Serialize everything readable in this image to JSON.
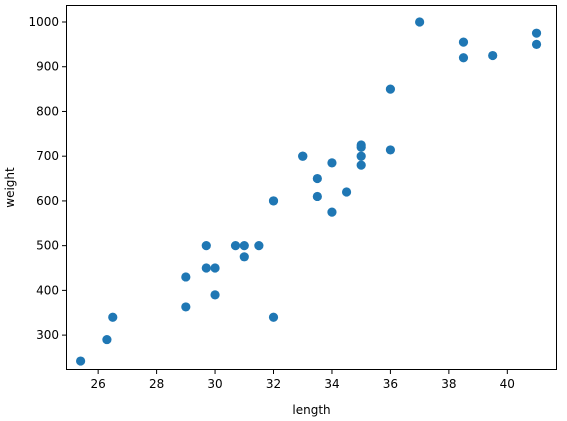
{
  "chart_data": {
    "type": "scatter",
    "title": "",
    "xlabel": "length",
    "ylabel": "weight",
    "xlim": [
      24.9,
      41.7
    ],
    "ylim": [
      222,
      1038
    ],
    "xticks": [
      26,
      28,
      30,
      32,
      34,
      36,
      38,
      40
    ],
    "yticks": [
      300,
      400,
      500,
      600,
      700,
      800,
      900,
      1000
    ],
    "grid": false,
    "marker_color": "#1f77b4",
    "points": [
      {
        "x": 25.4,
        "y": 242
      },
      {
        "x": 26.3,
        "y": 290
      },
      {
        "x": 26.5,
        "y": 340
      },
      {
        "x": 29.0,
        "y": 363
      },
      {
        "x": 29.0,
        "y": 430
      },
      {
        "x": 29.7,
        "y": 450
      },
      {
        "x": 29.7,
        "y": 500
      },
      {
        "x": 30.0,
        "y": 390
      },
      {
        "x": 30.0,
        "y": 450
      },
      {
        "x": 30.7,
        "y": 500
      },
      {
        "x": 31.0,
        "y": 475
      },
      {
        "x": 31.0,
        "y": 500
      },
      {
        "x": 31.5,
        "y": 500
      },
      {
        "x": 32.0,
        "y": 340
      },
      {
        "x": 32.0,
        "y": 600
      },
      {
        "x": 32.0,
        "y": 600
      },
      {
        "x": 33.0,
        "y": 700
      },
      {
        "x": 33.0,
        "y": 700
      },
      {
        "x": 33.5,
        "y": 610
      },
      {
        "x": 33.5,
        "y": 650
      },
      {
        "x": 34.0,
        "y": 575
      },
      {
        "x": 34.0,
        "y": 685
      },
      {
        "x": 34.5,
        "y": 620
      },
      {
        "x": 35.0,
        "y": 680
      },
      {
        "x": 35.0,
        "y": 700
      },
      {
        "x": 35.0,
        "y": 725
      },
      {
        "x": 35.0,
        "y": 720
      },
      {
        "x": 36.0,
        "y": 714
      },
      {
        "x": 36.0,
        "y": 850
      },
      {
        "x": 37.0,
        "y": 1000
      },
      {
        "x": 38.5,
        "y": 920
      },
      {
        "x": 38.5,
        "y": 955
      },
      {
        "x": 39.5,
        "y": 925
      },
      {
        "x": 41.0,
        "y": 975
      },
      {
        "x": 41.0,
        "y": 950
      }
    ]
  }
}
